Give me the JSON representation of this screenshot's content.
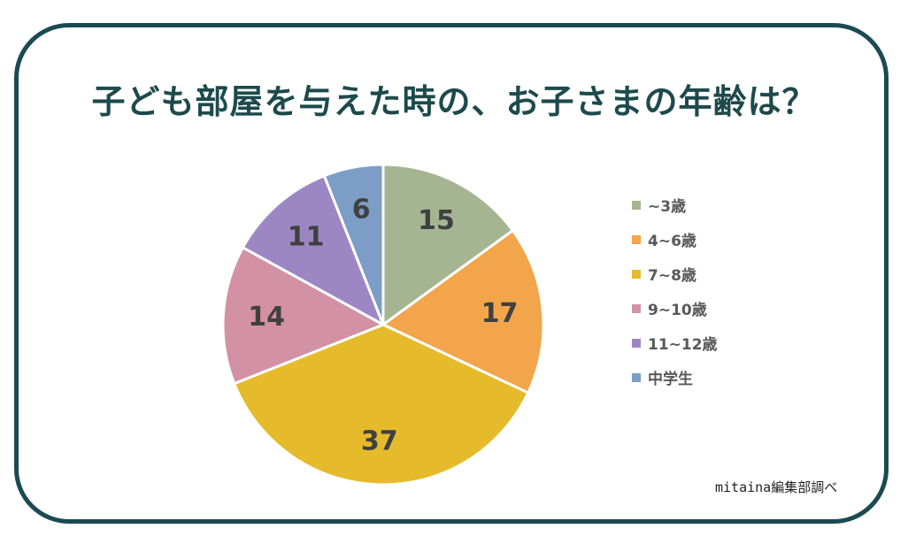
{
  "title": "子ども部屋を与えた時の、お子さまの年齢は？",
  "source_note": "mitaina編集部調べ",
  "chart_data": {
    "type": "pie",
    "categories": [
      "~3歳",
      "4~6歳",
      "7~8歳",
      "9~10歳",
      "11~12歳",
      "中学生"
    ],
    "values": [
      15,
      17,
      37,
      14,
      11,
      6
    ],
    "colors": [
      "#a5b592",
      "#f2a54b",
      "#e5bb2b",
      "#d391a6",
      "#9c87c4",
      "#7b9dc6"
    ],
    "legend_position": "right",
    "start_angle": "top, clockwise"
  }
}
